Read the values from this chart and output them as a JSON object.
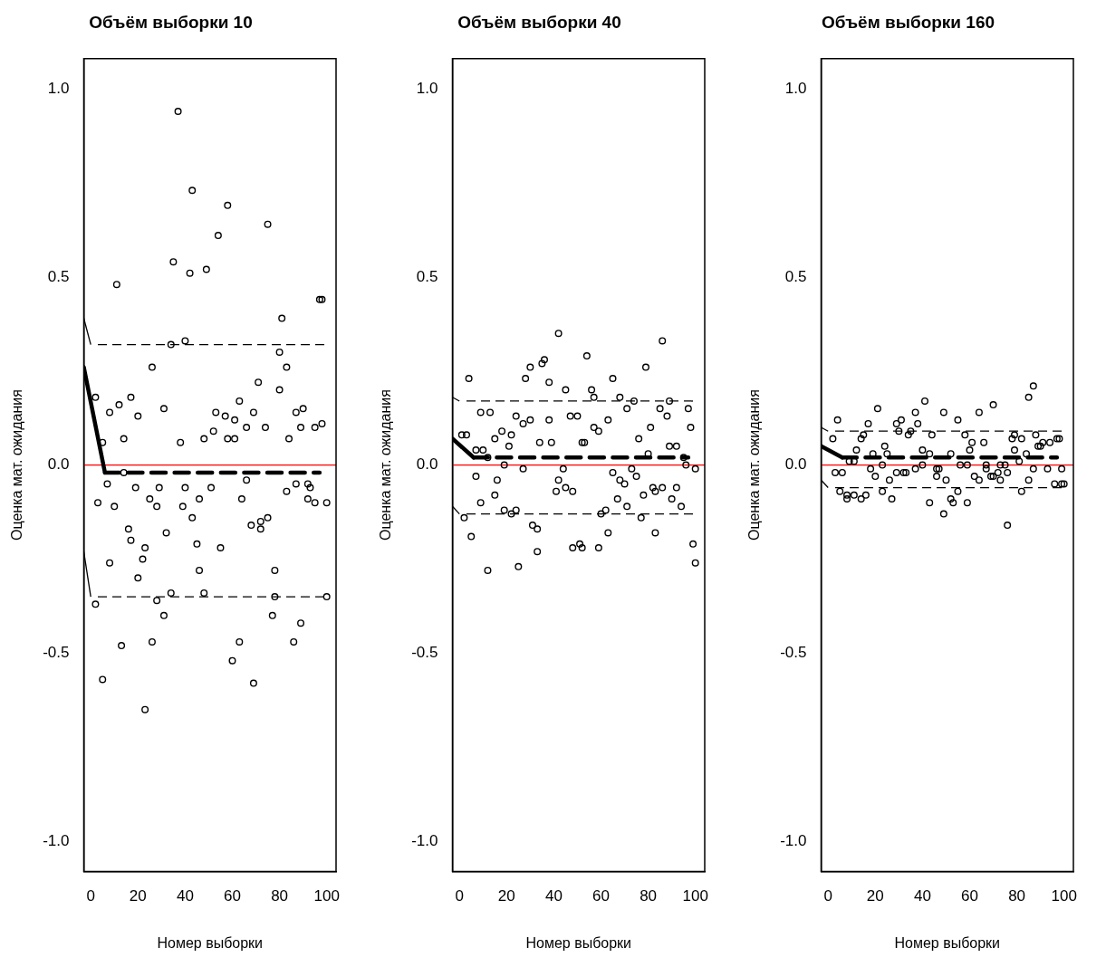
{
  "chart_data": [
    {
      "type": "scatter",
      "title": "Объём выборки 10",
      "xlabel": "Номер выборки",
      "ylabel": "Оценка мат. ожидания",
      "xlim": [
        -2.96,
        103.96
      ],
      "ylim": [
        -1.08,
        1.08
      ],
      "xticks": [
        0,
        20,
        40,
        60,
        80,
        100
      ],
      "yticks": [
        {
          "value": -1,
          "label": "-1.0"
        },
        {
          "value": -0.5,
          "label": "-0.5"
        },
        {
          "value": 0,
          "label": "0.0"
        },
        {
          "value": 0.5,
          "label": "0.5"
        },
        {
          "value": 1,
          "label": "1.0"
        }
      ],
      "ref_lines": [
        {
          "axis": "y",
          "value": 0,
          "color": "#ff0000"
        }
      ],
      "series": [
        {
          "type": "scatter",
          "marker": "circle",
          "color": "#000000",
          "x": [
            37,
            43,
            58,
            75,
            54,
            35,
            42,
            49,
            11,
            97,
            98,
            81,
            34,
            40,
            80,
            83,
            26,
            71,
            2,
            8,
            12,
            17,
            20,
            31,
            5,
            14,
            38,
            48,
            52,
            53,
            57,
            61,
            58,
            61,
            63,
            66,
            69,
            74,
            80,
            84,
            87,
            90,
            89,
            95,
            98,
            14,
            7,
            19,
            29,
            40,
            51,
            66,
            83,
            87,
            92,
            93,
            3,
            10,
            25,
            28,
            39,
            46,
            64,
            92,
            95,
            100,
            43,
            68,
            72,
            75,
            72,
            16,
            32,
            17,
            23,
            45,
            55,
            8,
            22,
            46,
            20,
            78,
            34,
            48,
            2,
            28,
            78,
            100,
            31,
            77,
            89,
            13,
            26,
            63,
            86,
            60,
            5,
            69,
            23
          ],
          "values": [
            0.94,
            0.73,
            0.69,
            0.64,
            0.61,
            0.54,
            0.51,
            0.52,
            0.48,
            0.44,
            0.44,
            0.39,
            0.32,
            0.33,
            0.3,
            0.26,
            0.26,
            0.22,
            0.18,
            0.14,
            0.16,
            0.18,
            0.13,
            0.15,
            0.06,
            0.07,
            0.06,
            0.07,
            0.09,
            0.14,
            0.13,
            0.12,
            0.07,
            0.07,
            0.17,
            0.1,
            0.14,
            0.1,
            0.2,
            0.07,
            0.14,
            0.15,
            0.1,
            0.1,
            0.11,
            -0.02,
            -0.05,
            -0.06,
            -0.06,
            -0.06,
            -0.06,
            -0.04,
            -0.07,
            -0.05,
            -0.05,
            -0.06,
            -0.1,
            -0.11,
            -0.09,
            -0.11,
            -0.11,
            -0.09,
            -0.09,
            -0.09,
            -0.1,
            -0.1,
            -0.14,
            -0.16,
            -0.15,
            -0.14,
            -0.17,
            -0.17,
            -0.18,
            -0.2,
            -0.22,
            -0.21,
            -0.22,
            -0.26,
            -0.25,
            -0.28,
            -0.3,
            -0.28,
            -0.34,
            -0.34,
            -0.37,
            -0.36,
            -0.35,
            -0.35,
            -0.4,
            -0.4,
            -0.42,
            -0.48,
            -0.47,
            -0.47,
            -0.47,
            -0.52,
            -0.57,
            -0.58,
            -0.65
          ]
        },
        {
          "type": "line",
          "color": "#000000",
          "line_style": "solid",
          "x": [
            -2.96,
            6
          ],
          "values": [
            0.26,
            -0.02
          ]
        },
        {
          "type": "line",
          "color": "#000000",
          "line_style": "dashed",
          "x": [
            6,
            97
          ],
          "values": [
            -0.02,
            -0.02
          ]
        },
        {
          "type": "line",
          "color": "#000000",
          "line_style": "dashed",
          "x": [
            3,
            100
          ],
          "values": [
            0.32,
            0.32
          ]
        },
        {
          "type": "line",
          "color": "#000000",
          "line_style": "dashed",
          "x": [
            3,
            100
          ],
          "values": [
            -0.35,
            -0.35
          ]
        },
        {
          "type": "line",
          "color": "#000000",
          "line_style": "solid",
          "x": [
            -2.96,
            0
          ],
          "values": [
            0.39,
            0.32
          ]
        },
        {
          "type": "line",
          "color": "#000000",
          "line_style": "solid",
          "x": [
            -2.96,
            0
          ],
          "values": [
            -0.23,
            -0.35
          ]
        }
      ]
    },
    {
      "type": "scatter",
      "title": "Объём выборки 40",
      "xlabel": "Номер выборки",
      "ylabel": "Оценка мат. ожидания",
      "xlim": [
        -2.96,
        103.96
      ],
      "ylim": [
        -1.08,
        1.08
      ],
      "xticks": [
        0,
        20,
        40,
        60,
        80,
        100
      ],
      "yticks": [
        {
          "value": -1,
          "label": "-1.0"
        },
        {
          "value": -0.5,
          "label": "-0.5"
        },
        {
          "value": 0,
          "label": "0.0"
        },
        {
          "value": 0.5,
          "label": "0.5"
        },
        {
          "value": 1,
          "label": "1.0"
        }
      ],
      "ref_lines": [
        {
          "axis": "y",
          "value": 0,
          "color": "#ff0000"
        }
      ],
      "series": [
        {
          "type": "scatter",
          "marker": "circle",
          "color": "#000000",
          "x": [
            42,
            86,
            54,
            36,
            35,
            30,
            79,
            4,
            28,
            65,
            38,
            45,
            56,
            57,
            68,
            74,
            89,
            71,
            85,
            97,
            88,
            9,
            13,
            24,
            30,
            27,
            38,
            47,
            50,
            63,
            57,
            59,
            81,
            98,
            1,
            3,
            18,
            22,
            15,
            34,
            39,
            52,
            53,
            76,
            7,
            10,
            12,
            21,
            80,
            89,
            92,
            95,
            19,
            96,
            27,
            44,
            73,
            100,
            7,
            42,
            65,
            68,
            70,
            75,
            16,
            45,
            41,
            48,
            82,
            86,
            83,
            92,
            78,
            15,
            9,
            67,
            90,
            71,
            94,
            19,
            24,
            22,
            60,
            62,
            2,
            77,
            31,
            33,
            83,
            5,
            63,
            99,
            33,
            48,
            51,
            52,
            59,
            100,
            12,
            25
          ],
          "values": [
            0.35,
            0.33,
            0.29,
            0.28,
            0.27,
            0.26,
            0.26,
            0.23,
            0.23,
            0.23,
            0.22,
            0.2,
            0.2,
            0.18,
            0.18,
            0.17,
            0.17,
            0.15,
            0.15,
            0.15,
            0.13,
            0.14,
            0.14,
            0.13,
            0.12,
            0.11,
            0.12,
            0.13,
            0.13,
            0.12,
            0.1,
            0.09,
            0.1,
            0.1,
            0.08,
            0.08,
            0.09,
            0.08,
            0.07,
            0.06,
            0.06,
            0.06,
            0.06,
            0.07,
            0.04,
            0.04,
            0.02,
            0.05,
            0.03,
            0.05,
            0.05,
            0.02,
            0.0,
            0.0,
            -0.01,
            -0.01,
            -0.01,
            -0.01,
            -0.03,
            -0.04,
            -0.02,
            -0.04,
            -0.05,
            -0.03,
            -0.04,
            -0.06,
            -0.07,
            -0.07,
            -0.06,
            -0.06,
            -0.07,
            -0.06,
            -0.08,
            -0.08,
            -0.1,
            -0.09,
            -0.09,
            -0.11,
            -0.11,
            -0.12,
            -0.12,
            -0.13,
            -0.13,
            -0.12,
            -0.14,
            -0.14,
            -0.16,
            -0.17,
            -0.18,
            -0.19,
            -0.18,
            -0.21,
            -0.23,
            -0.22,
            -0.21,
            -0.22,
            -0.22,
            -0.26,
            -0.28,
            -0.27
          ]
        },
        {
          "type": "line",
          "color": "#000000",
          "line_style": "solid",
          "x": [
            -2.96,
            6
          ],
          "values": [
            0.07,
            0.02
          ]
        },
        {
          "type": "line",
          "color": "#000000",
          "line_style": "dashed",
          "x": [
            6,
            97
          ],
          "values": [
            0.02,
            0.02
          ]
        },
        {
          "type": "line",
          "color": "#000000",
          "line_style": "dashed",
          "x": [
            3,
            100
          ],
          "values": [
            0.17,
            0.17
          ]
        },
        {
          "type": "line",
          "color": "#000000",
          "line_style": "dashed",
          "x": [
            3,
            100
          ],
          "values": [
            -0.13,
            -0.13
          ]
        },
        {
          "type": "line",
          "color": "#000000",
          "line_style": "solid",
          "x": [
            -2.96,
            0
          ],
          "values": [
            0.18,
            0.17
          ]
        },
        {
          "type": "line",
          "color": "#000000",
          "line_style": "solid",
          "x": [
            -2.96,
            0
          ],
          "values": [
            -0.11,
            -0.13
          ]
        }
      ]
    },
    {
      "type": "scatter",
      "title": "Объём выборки 160",
      "xlabel": "Номер выборки",
      "ylabel": "Оценка мат. ожидания",
      "xlim": [
        -2.96,
        103.96
      ],
      "ylim": [
        -1.08,
        1.08
      ],
      "xticks": [
        0,
        20,
        40,
        60,
        80,
        100
      ],
      "yticks": [
        {
          "value": -1,
          "label": "-1.0"
        },
        {
          "value": -0.5,
          "label": "-0.5"
        },
        {
          "value": 0,
          "label": "0.0"
        },
        {
          "value": 0.5,
          "label": "0.5"
        },
        {
          "value": 1,
          "label": "1.0"
        }
      ],
      "ref_lines": [
        {
          "axis": "y",
          "value": 0,
          "color": "#ff0000"
        }
      ],
      "series": [
        {
          "type": "scatter",
          "marker": "circle",
          "color": "#000000",
          "x": [
            87,
            85,
            41,
            70,
            21,
            49,
            64,
            37,
            4,
            55,
            31,
            17,
            29,
            38,
            30,
            35,
            15,
            58,
            44,
            79,
            88,
            34,
            14,
            2,
            78,
            82,
            94,
            97,
            98,
            91,
            90,
            89,
            24,
            61,
            66,
            40,
            79,
            60,
            12,
            25,
            52,
            84,
            43,
            19,
            9,
            11,
            81,
            67,
            73,
            75,
            23,
            40,
            56,
            59,
            46,
            47,
            37,
            87,
            93,
            99,
            67,
            3,
            6,
            18,
            20,
            29,
            32,
            33,
            46,
            62,
            64,
            70,
            69,
            72,
            73,
            76,
            26,
            50,
            85,
            96,
            99,
            100,
            5,
            8,
            11,
            8,
            14,
            16,
            23,
            27,
            55,
            52,
            53,
            59,
            82,
            43,
            49,
            76
          ],
          "values": [
            0.21,
            0.18,
            0.17,
            0.16,
            0.15,
            0.14,
            0.14,
            0.14,
            0.12,
            0.12,
            0.12,
            0.11,
            0.11,
            0.11,
            0.09,
            0.09,
            0.08,
            0.08,
            0.08,
            0.08,
            0.08,
            0.08,
            0.07,
            0.07,
            0.07,
            0.07,
            0.06,
            0.07,
            0.07,
            0.06,
            0.05,
            0.05,
            0.05,
            0.06,
            0.06,
            0.04,
            0.04,
            0.04,
            0.04,
            0.03,
            0.03,
            0.03,
            0.03,
            0.03,
            0.01,
            0.01,
            0.01,
            0.0,
            0.0,
            0.0,
            0.0,
            0.0,
            0.0,
            0.0,
            -0.01,
            -0.01,
            -0.01,
            -0.01,
            -0.01,
            -0.01,
            -0.01,
            -0.02,
            -0.02,
            -0.01,
            -0.03,
            -0.02,
            -0.02,
            -0.02,
            -0.03,
            -0.03,
            -0.04,
            -0.03,
            -0.03,
            -0.02,
            -0.04,
            -0.02,
            -0.04,
            -0.04,
            -0.04,
            -0.05,
            -0.05,
            -0.05,
            -0.07,
            -0.08,
            -0.08,
            -0.09,
            -0.09,
            -0.08,
            -0.07,
            -0.09,
            -0.07,
            -0.09,
            -0.1,
            -0.1,
            -0.07,
            -0.1,
            -0.13,
            -0.16
          ]
        },
        {
          "type": "line",
          "color": "#000000",
          "line_style": "solid",
          "x": [
            -2.96,
            6
          ],
          "values": [
            0.05,
            0.02
          ]
        },
        {
          "type": "line",
          "color": "#000000",
          "line_style": "dashed",
          "x": [
            6,
            97
          ],
          "values": [
            0.02,
            0.02
          ]
        },
        {
          "type": "line",
          "color": "#000000",
          "line_style": "dashed",
          "x": [
            3,
            100
          ],
          "values": [
            0.09,
            0.09
          ]
        },
        {
          "type": "line",
          "color": "#000000",
          "line_style": "dashed",
          "x": [
            3,
            100
          ],
          "values": [
            -0.06,
            -0.06
          ]
        },
        {
          "type": "line",
          "color": "#000000",
          "line_style": "solid",
          "x": [
            -2.96,
            0
          ],
          "values": [
            0.1,
            0.09
          ]
        },
        {
          "type": "line",
          "color": "#000000",
          "line_style": "solid",
          "x": [
            -2.96,
            0
          ],
          "values": [
            -0.04,
            -0.06
          ]
        }
      ]
    }
  ]
}
